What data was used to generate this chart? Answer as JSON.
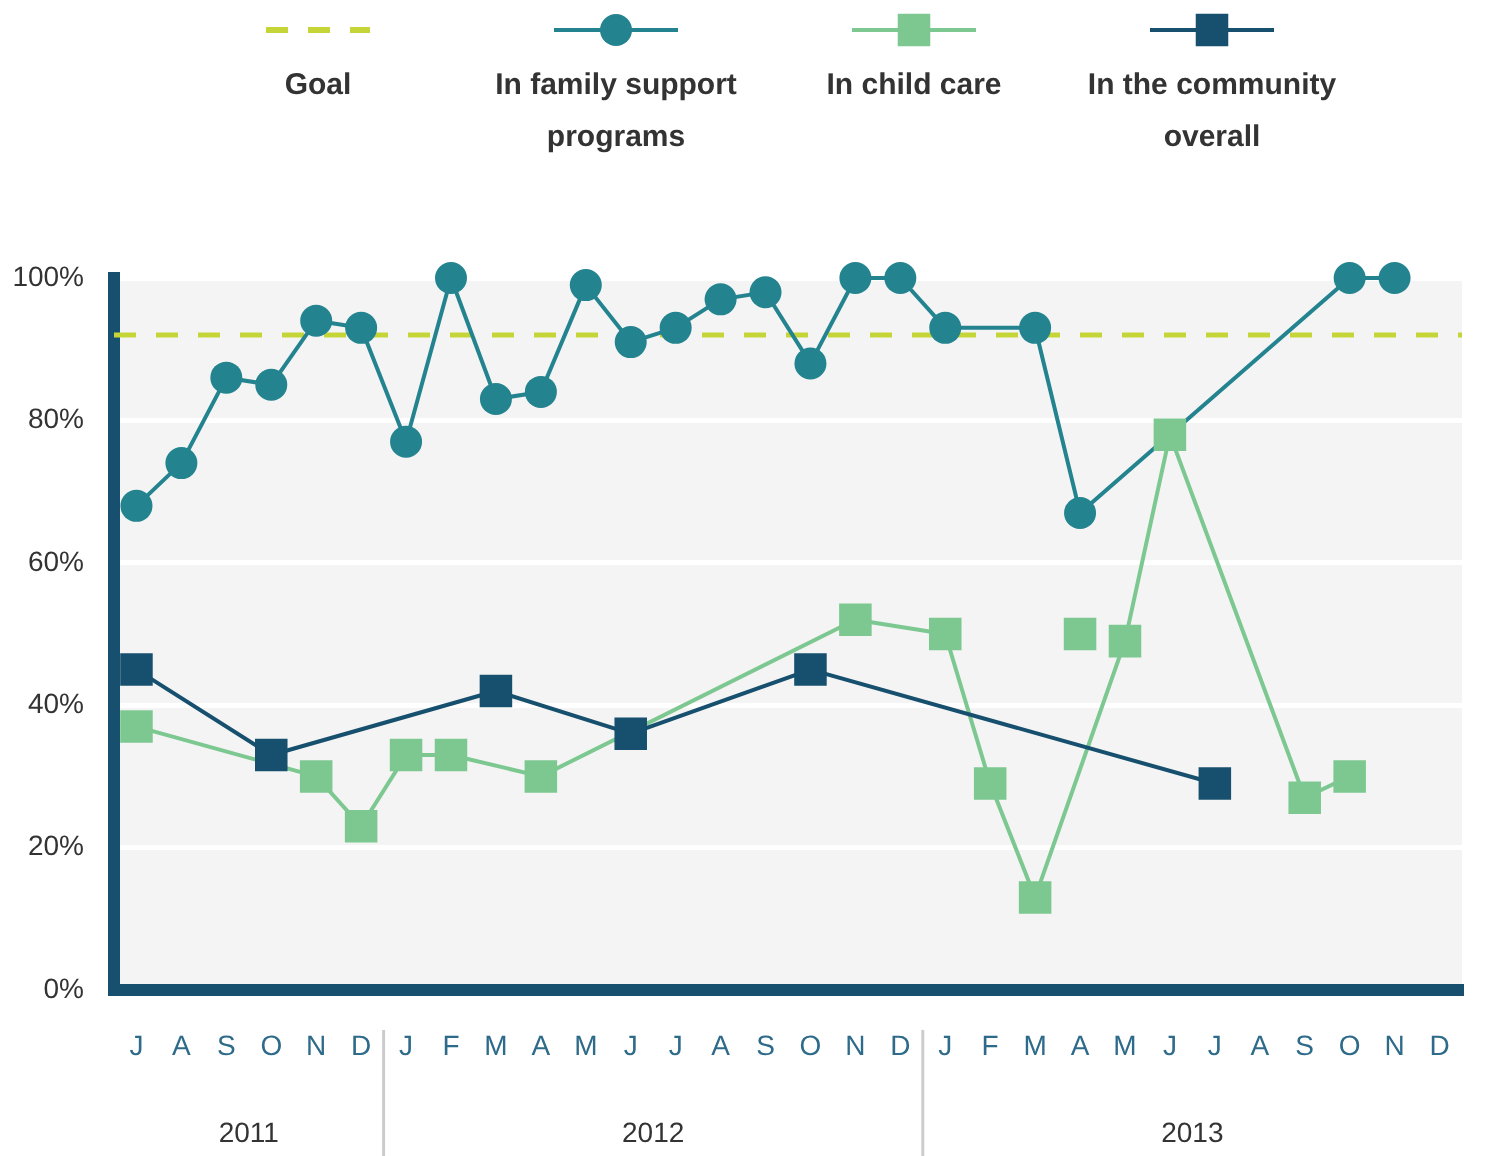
{
  "chart_data": {
    "type": "line",
    "legend": "top",
    "grid": "y",
    "categories": [
      "J",
      "A",
      "S",
      "O",
      "N",
      "D",
      "J",
      "F",
      "M",
      "A",
      "M",
      "J",
      "J",
      "A",
      "S",
      "O",
      "N",
      "D",
      "J",
      "F",
      "M",
      "A",
      "M",
      "J",
      "J",
      "A",
      "S",
      "O",
      "N",
      "D"
    ],
    "ylim": [
      0,
      100
    ],
    "yticks": [
      {
        "value": 0,
        "label": "0%"
      },
      {
        "value": 20,
        "label": "20%"
      },
      {
        "value": 40,
        "label": "40%"
      },
      {
        "value": 60,
        "label": "60%"
      },
      {
        "value": 80,
        "label": "80%"
      },
      {
        "value": 100,
        "label": "100%"
      }
    ],
    "annotations": [
      "2011",
      "2012",
      "2013"
    ],
    "ref_lines": [
      {
        "axis": "y",
        "value": 92,
        "label": "Goal",
        "color": "#c5d538",
        "line_style": "dashed"
      }
    ],
    "series": [
      {
        "name": "In family support programs",
        "color": "#23838f",
        "marker": "circle",
        "values": [
          68,
          74,
          86,
          85,
          94,
          93,
          77,
          100,
          83,
          84,
          99,
          91,
          93,
          97,
          98,
          88,
          100,
          100,
          93,
          null,
          93,
          67,
          null,
          null,
          null,
          null,
          null,
          100,
          100,
          null
        ]
      },
      {
        "name": "In child care",
        "color": "#7cc890",
        "marker": "square",
        "values": [
          37,
          null,
          null,
          null,
          30,
          23,
          33,
          33,
          null,
          30,
          null,
          null,
          null,
          null,
          null,
          null,
          52,
          null,
          50,
          29,
          13,
          null,
          49,
          78,
          null,
          null,
          27,
          30,
          null,
          null
        ]
      },
      {
        "type": "scatter",
        "color": "#7cc890",
        "marker": "square",
        "values": [
          null,
          null,
          null,
          null,
          null,
          null,
          null,
          null,
          null,
          null,
          null,
          null,
          null,
          null,
          null,
          null,
          null,
          null,
          null,
          null,
          null,
          50,
          null,
          null,
          null,
          null,
          null,
          null,
          null,
          null
        ]
      },
      {
        "name": "In the community overall",
        "color": "#17506e",
        "marker": "square",
        "values": [
          45,
          null,
          null,
          33,
          null,
          null,
          null,
          null,
          42,
          null,
          null,
          36,
          null,
          null,
          null,
          45,
          null,
          null,
          null,
          null,
          null,
          null,
          null,
          null,
          29,
          null,
          null,
          null,
          null,
          null
        ]
      }
    ]
  }
}
